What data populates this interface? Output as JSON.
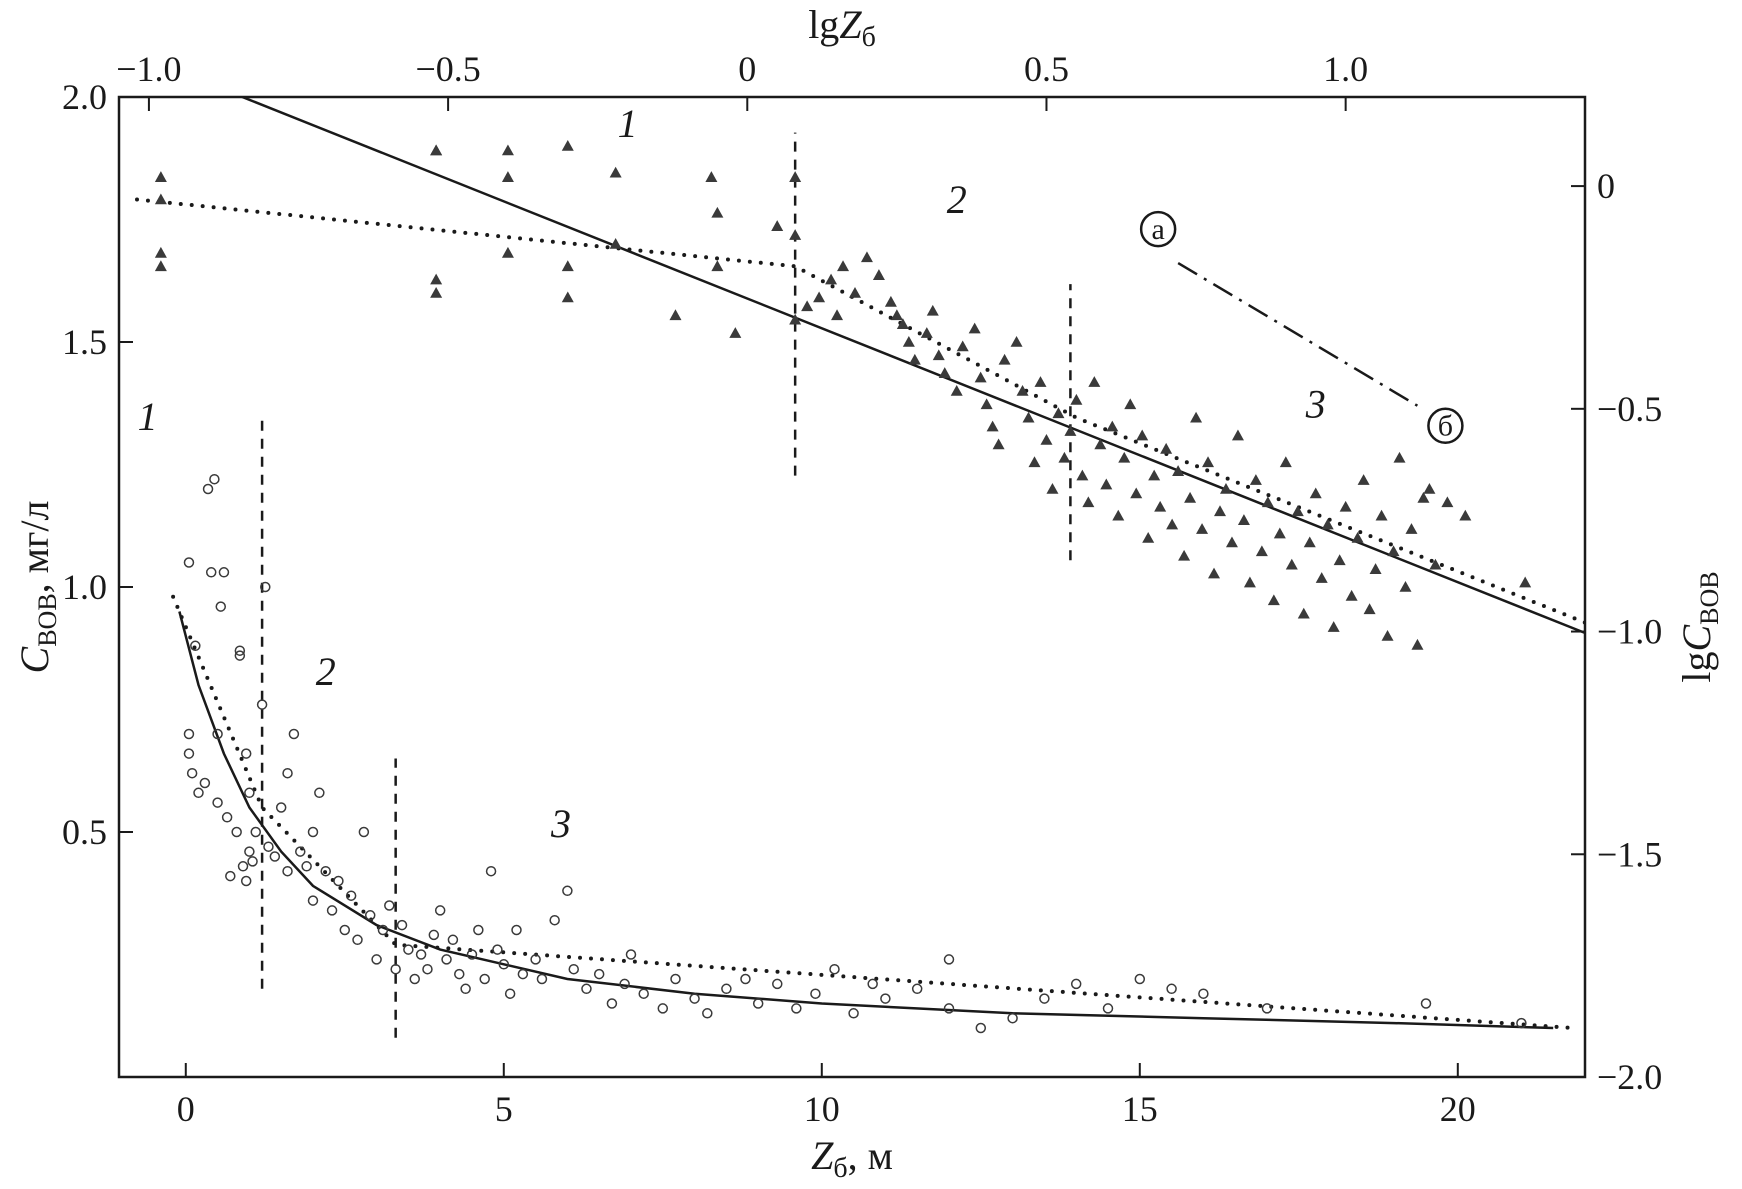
{
  "chart_data": {
    "type": "scatter",
    "title": "",
    "colors": {
      "ink": "#1a1a1a",
      "marker": "#3a3a3a"
    },
    "axes": {
      "bottom": {
        "label": "Z",
        "label_sub": "б",
        "label_unit": ", м",
        "range": [
          -1.05,
          22.0
        ],
        "ticks": [
          0,
          5,
          10,
          15,
          20
        ]
      },
      "left": {
        "label": "C",
        "label_sub": "ВОВ",
        "label_unit": ", мг/л",
        "range": [
          0.0,
          2.0
        ],
        "ticks": [
          0.5,
          1.0,
          1.5,
          2.0
        ]
      },
      "top": {
        "label": "lg",
        "label_it": "Z",
        "label_sub": "б",
        "range": [
          -1.05,
          1.4
        ],
        "ticks": [
          -1.0,
          -0.5,
          0,
          0.5,
          1.0
        ],
        "tick_labels": [
          "−1.0",
          "−0.5",
          "0",
          "0.5",
          "1.0"
        ]
      },
      "right": {
        "label": "lg",
        "label_it": "C",
        "label_sub": "ВОВ",
        "range": [
          -2.0,
          0.2
        ],
        "ticks": [
          0,
          -0.5,
          -1.0,
          -1.5,
          -2.0
        ],
        "tick_labels": [
          "0",
          "−0.5",
          "−1.0",
          "−1.5",
          "−2.0"
        ]
      }
    },
    "series": [
      {
        "axes": "top-right",
        "marker": "triangle",
        "points": [
          [
            -0.98,
            -0.03
          ],
          [
            -0.98,
            0.02
          ],
          [
            -0.98,
            -0.15
          ],
          [
            -0.98,
            -0.18
          ],
          [
            -0.52,
            -0.24
          ],
          [
            -0.52,
            -0.21
          ],
          [
            -0.52,
            0.08
          ],
          [
            -0.52,
            0.08
          ],
          [
            -0.4,
            -0.15
          ],
          [
            -0.4,
            0.08
          ],
          [
            -0.4,
            0.02
          ],
          [
            -0.3,
            -0.18
          ],
          [
            -0.3,
            -0.25
          ],
          [
            -0.3,
            0.09
          ],
          [
            -0.22,
            -0.13
          ],
          [
            -0.22,
            0.03
          ],
          [
            -0.12,
            -0.29
          ],
          [
            -0.06,
            0.02
          ],
          [
            -0.05,
            -0.18
          ],
          [
            -0.05,
            -0.06
          ],
          [
            -0.02,
            -0.33
          ],
          [
            0.05,
            -0.09
          ],
          [
            0.08,
            0.02
          ],
          [
            0.08,
            -0.11
          ],
          [
            0.08,
            -0.3
          ],
          [
            0.1,
            -0.27
          ],
          [
            0.12,
            -0.25
          ],
          [
            0.14,
            -0.21
          ],
          [
            0.15,
            -0.29
          ],
          [
            0.16,
            -0.18
          ],
          [
            0.18,
            -0.24
          ],
          [
            0.2,
            -0.16
          ],
          [
            0.22,
            -0.2
          ],
          [
            0.24,
            -0.26
          ],
          [
            0.25,
            -0.29
          ],
          [
            0.26,
            -0.31
          ],
          [
            0.27,
            -0.35
          ],
          [
            0.28,
            -0.39
          ],
          [
            0.3,
            -0.33
          ],
          [
            0.31,
            -0.28
          ],
          [
            0.32,
            -0.38
          ],
          [
            0.33,
            -0.42
          ],
          [
            0.35,
            -0.46
          ],
          [
            0.36,
            -0.36
          ],
          [
            0.38,
            -0.32
          ],
          [
            0.39,
            -0.43
          ],
          [
            0.4,
            -0.49
          ],
          [
            0.41,
            -0.54
          ],
          [
            0.42,
            -0.58
          ],
          [
            0.43,
            -0.39
          ],
          [
            0.45,
            -0.35
          ],
          [
            0.46,
            -0.46
          ],
          [
            0.47,
            -0.52
          ],
          [
            0.48,
            -0.62
          ],
          [
            0.49,
            -0.44
          ],
          [
            0.5,
            -0.57
          ],
          [
            0.51,
            -0.68
          ],
          [
            0.52,
            -0.51
          ],
          [
            0.53,
            -0.61
          ],
          [
            0.54,
            -0.55
          ],
          [
            0.55,
            -0.48
          ],
          [
            0.56,
            -0.65
          ],
          [
            0.57,
            -0.71
          ],
          [
            0.58,
            -0.44
          ],
          [
            0.59,
            -0.58
          ],
          [
            0.6,
            -0.67
          ],
          [
            0.61,
            -0.54
          ],
          [
            0.62,
            -0.74
          ],
          [
            0.63,
            -0.61
          ],
          [
            0.64,
            -0.49
          ],
          [
            0.65,
            -0.69
          ],
          [
            0.66,
            -0.56
          ],
          [
            0.67,
            -0.79
          ],
          [
            0.68,
            -0.65
          ],
          [
            0.69,
            -0.72
          ],
          [
            0.7,
            -0.59
          ],
          [
            0.71,
            -0.76
          ],
          [
            0.72,
            -0.64
          ],
          [
            0.73,
            -0.83
          ],
          [
            0.74,
            -0.7
          ],
          [
            0.75,
            -0.52
          ],
          [
            0.76,
            -0.77
          ],
          [
            0.77,
            -0.62
          ],
          [
            0.78,
            -0.87
          ],
          [
            0.79,
            -0.73
          ],
          [
            0.8,
            -0.68
          ],
          [
            0.81,
            -0.8
          ],
          [
            0.82,
            -0.56
          ],
          [
            0.83,
            -0.75
          ],
          [
            0.84,
            -0.89
          ],
          [
            0.85,
            -0.66
          ],
          [
            0.86,
            -0.82
          ],
          [
            0.87,
            -0.71
          ],
          [
            0.88,
            -0.93
          ],
          [
            0.89,
            -0.78
          ],
          [
            0.9,
            -0.62
          ],
          [
            0.91,
            -0.85
          ],
          [
            0.92,
            -0.73
          ],
          [
            0.93,
            -0.96
          ],
          [
            0.94,
            -0.8
          ],
          [
            0.95,
            -0.69
          ],
          [
            0.96,
            -0.88
          ],
          [
            0.97,
            -0.76
          ],
          [
            0.98,
            -0.99
          ],
          [
            0.99,
            -0.84
          ],
          [
            1.0,
            -0.72
          ],
          [
            1.01,
            -0.92
          ],
          [
            1.02,
            -0.79
          ],
          [
            1.03,
            -0.66
          ],
          [
            1.04,
            -0.95
          ],
          [
            1.05,
            -0.86
          ],
          [
            1.06,
            -0.74
          ],
          [
            1.07,
            -1.01
          ],
          [
            1.08,
            -0.82
          ],
          [
            1.09,
            -0.61
          ],
          [
            1.1,
            -0.9
          ],
          [
            1.11,
            -0.77
          ],
          [
            1.12,
            -1.03
          ],
          [
            1.13,
            -0.7
          ],
          [
            1.14,
            -0.68
          ],
          [
            1.15,
            -0.85
          ],
          [
            1.17,
            -0.71
          ],
          [
            1.2,
            -0.74
          ],
          [
            1.3,
            -0.89
          ]
        ]
      },
      {
        "axes": "bottom-left",
        "marker": "circle",
        "points": [
          [
            0.05,
            1.05
          ],
          [
            0.05,
            0.7
          ],
          [
            0.05,
            0.66
          ],
          [
            0.1,
            0.62
          ],
          [
            0.15,
            0.88
          ],
          [
            0.2,
            0.58
          ],
          [
            0.3,
            0.6
          ],
          [
            0.35,
            1.2
          ],
          [
            0.4,
            1.03
          ],
          [
            0.45,
            1.22
          ],
          [
            0.5,
            0.56
          ],
          [
            0.5,
            0.7
          ],
          [
            0.55,
            0.96
          ],
          [
            0.6,
            1.03
          ],
          [
            0.65,
            0.53
          ],
          [
            0.7,
            0.41
          ],
          [
            0.8,
            0.5
          ],
          [
            0.85,
            0.87
          ],
          [
            0.85,
            0.86
          ],
          [
            0.9,
            0.43
          ],
          [
            0.95,
            0.4
          ],
          [
            0.95,
            0.66
          ],
          [
            1.0,
            0.58
          ],
          [
            1.0,
            0.46
          ],
          [
            1.05,
            0.44
          ],
          [
            1.1,
            0.5
          ],
          [
            1.2,
            0.76
          ],
          [
            1.25,
            1.0
          ],
          [
            1.3,
            0.47
          ],
          [
            1.4,
            0.45
          ],
          [
            1.5,
            0.55
          ],
          [
            1.6,
            0.42
          ],
          [
            1.6,
            0.62
          ],
          [
            1.7,
            0.7
          ],
          [
            1.8,
            0.46
          ],
          [
            1.9,
            0.43
          ],
          [
            2.0,
            0.5
          ],
          [
            2.0,
            0.36
          ],
          [
            2.1,
            0.58
          ],
          [
            2.2,
            0.42
          ],
          [
            2.3,
            0.34
          ],
          [
            2.4,
            0.4
          ],
          [
            2.5,
            0.3
          ],
          [
            2.6,
            0.37
          ],
          [
            2.7,
            0.28
          ],
          [
            2.8,
            0.5
          ],
          [
            2.9,
            0.33
          ],
          [
            3.0,
            0.24
          ],
          [
            3.1,
            0.3
          ],
          [
            3.2,
            0.35
          ],
          [
            3.3,
            0.22
          ],
          [
            3.4,
            0.31
          ],
          [
            3.5,
            0.26
          ],
          [
            3.6,
            0.2
          ],
          [
            3.7,
            0.25
          ],
          [
            3.8,
            0.22
          ],
          [
            3.9,
            0.29
          ],
          [
            4.0,
            0.34
          ],
          [
            4.1,
            0.24
          ],
          [
            4.2,
            0.28
          ],
          [
            4.3,
            0.21
          ],
          [
            4.4,
            0.18
          ],
          [
            4.5,
            0.25
          ],
          [
            4.6,
            0.3
          ],
          [
            4.7,
            0.2
          ],
          [
            4.8,
            0.42
          ],
          [
            4.9,
            0.26
          ],
          [
            5.0,
            0.23
          ],
          [
            5.1,
            0.17
          ],
          [
            5.2,
            0.3
          ],
          [
            5.3,
            0.21
          ],
          [
            5.5,
            0.24
          ],
          [
            5.6,
            0.2
          ],
          [
            5.8,
            0.32
          ],
          [
            6.0,
            0.38
          ],
          [
            6.1,
            0.22
          ],
          [
            6.3,
            0.18
          ],
          [
            6.5,
            0.21
          ],
          [
            6.7,
            0.15
          ],
          [
            6.9,
            0.19
          ],
          [
            7.0,
            0.25
          ],
          [
            7.2,
            0.17
          ],
          [
            7.5,
            0.14
          ],
          [
            7.7,
            0.2
          ],
          [
            8.0,
            0.16
          ],
          [
            8.2,
            0.13
          ],
          [
            8.5,
            0.18
          ],
          [
            8.8,
            0.2
          ],
          [
            9.0,
            0.15
          ],
          [
            9.3,
            0.19
          ],
          [
            9.6,
            0.14
          ],
          [
            9.9,
            0.17
          ],
          [
            10.2,
            0.22
          ],
          [
            10.5,
            0.13
          ],
          [
            10.8,
            0.19
          ],
          [
            11.0,
            0.16
          ],
          [
            11.5,
            0.18
          ],
          [
            12.0,
            0.14
          ],
          [
            12.0,
            0.24
          ],
          [
            12.5,
            0.1
          ],
          [
            13.0,
            0.12
          ],
          [
            13.5,
            0.16
          ],
          [
            14.0,
            0.19
          ],
          [
            14.5,
            0.14
          ],
          [
            15.0,
            0.2
          ],
          [
            15.5,
            0.18
          ],
          [
            16.0,
            0.17
          ],
          [
            17.0,
            0.14
          ],
          [
            19.5,
            0.15
          ],
          [
            21.0,
            0.11
          ]
        ]
      }
    ],
    "fit_lines": [
      {
        "axes": "top-right",
        "style": "solid",
        "kind": "linear",
        "points": [
          [
            -0.9,
            0.23
          ],
          [
            1.45,
            -1.03
          ]
        ]
      },
      {
        "axes": "top-right",
        "style": "dotted",
        "kind": "polyline",
        "points": [
          [
            -1.02,
            -0.03
          ],
          [
            0.08,
            -0.18
          ],
          [
            0.55,
            -0.52
          ],
          [
            1.4,
            -0.98
          ]
        ]
      },
      {
        "axes": "bottom-left",
        "style": "solid",
        "kind": "power",
        "points": [
          [
            -0.1,
            0.95
          ],
          [
            0.2,
            0.8
          ],
          [
            0.6,
            0.66
          ],
          [
            1.0,
            0.55
          ],
          [
            1.5,
            0.46
          ],
          [
            2.0,
            0.39
          ],
          [
            3.0,
            0.31
          ],
          [
            4.0,
            0.26
          ],
          [
            6.0,
            0.2
          ],
          [
            8.0,
            0.17
          ],
          [
            10.0,
            0.15
          ],
          [
            13.0,
            0.13
          ],
          [
            16.0,
            0.12
          ],
          [
            19.0,
            0.11
          ],
          [
            21.5,
            0.1
          ]
        ]
      },
      {
        "axes": "bottom-left",
        "style": "dotted",
        "kind": "polyline",
        "points": [
          [
            -0.2,
            0.98
          ],
          [
            1.2,
            0.55
          ],
          [
            3.3,
            0.27
          ],
          [
            21.8,
            0.1
          ]
        ]
      }
    ],
    "vlines": [
      {
        "axes": "top-right",
        "x": 0.08,
        "y0": -0.65,
        "y1": 0.12
      },
      {
        "axes": "top-right",
        "x": 0.54,
        "y0": -0.84,
        "y1": -0.22
      },
      {
        "axes": "bottom-left",
        "x": 1.2,
        "y0": 0.18,
        "y1": 1.35
      },
      {
        "axes": "bottom-left",
        "x": 3.3,
        "y0": 0.08,
        "y1": 0.65
      }
    ],
    "annotations": [
      {
        "id": "zone-1-top",
        "text": "1",
        "axes": "top-right",
        "x": -0.2,
        "y": 0.11,
        "style": "italic"
      },
      {
        "id": "zone-2-top",
        "text": "2",
        "axes": "top-right",
        "x": 0.35,
        "y": -0.06,
        "style": "italic"
      },
      {
        "id": "zone-3-top",
        "text": "3",
        "axes": "top-right",
        "x": 0.95,
        "y": -0.52,
        "style": "italic"
      },
      {
        "id": "zone-1-bottom",
        "text": "1",
        "axes": "bottom-left",
        "x": -0.6,
        "y": 1.32,
        "style": "italic"
      },
      {
        "id": "zone-2-bottom",
        "text": "2",
        "axes": "bottom-left",
        "x": 2.2,
        "y": 0.8,
        "style": "italic"
      },
      {
        "id": "zone-3-bottom",
        "text": "3",
        "axes": "bottom-left",
        "x": 5.9,
        "y": 0.49,
        "style": "italic"
      }
    ],
    "legend_key": {
      "line_style": "dashdot",
      "from": {
        "label": "а",
        "axes": "top-right",
        "x": 0.7,
        "y": -0.11
      },
      "to": {
        "label": "б",
        "axes": "top-right",
        "x": 1.15,
        "y": -0.52
      }
    }
  }
}
